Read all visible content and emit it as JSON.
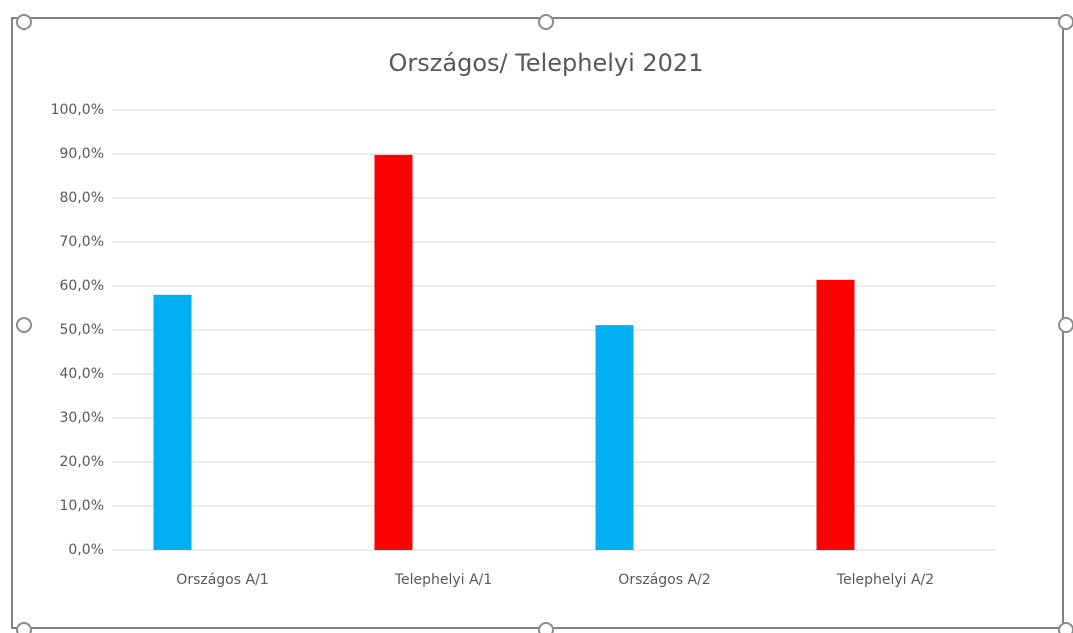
{
  "chart_data": {
    "type": "bar",
    "title": "Országos/ Telephelyi 2021",
    "categories": [
      "Országos A/1",
      "Telephelyi A/1",
      "Országos A/2",
      "Telephelyi A/2"
    ],
    "values": [
      58.0,
      89.8,
      51.1,
      61.4
    ],
    "colors": [
      "#00b0f0",
      "#ff0000",
      "#00b0f0",
      "#ff0000"
    ],
    "ylim": [
      0,
      100
    ],
    "yticks": [
      {
        "value": 0,
        "label": "0,0%"
      },
      {
        "value": 10,
        "label": "10,0%"
      },
      {
        "value": 20,
        "label": "20,0%"
      },
      {
        "value": 30,
        "label": "30,0%"
      },
      {
        "value": 40,
        "label": "40,0%"
      },
      {
        "value": 50,
        "label": "50,0%"
      },
      {
        "value": 60,
        "label": "60,0%"
      },
      {
        "value": 70,
        "label": "70,0%"
      },
      {
        "value": 80,
        "label": "80,0%"
      },
      {
        "value": 90,
        "label": "90,0%"
      },
      {
        "value": 100,
        "label": "100,0%"
      }
    ],
    "grid": true
  }
}
